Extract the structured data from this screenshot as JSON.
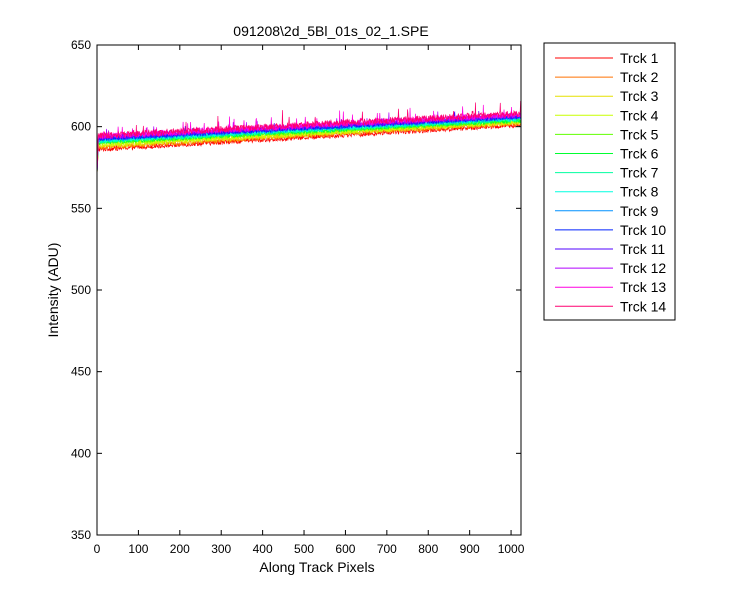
{
  "chart_data": {
    "type": "line",
    "title": "091208\\2d_5Bl_01s_02_1.SPE",
    "xlabel": "Along Track Pixels",
    "ylabel": "Intensity (ADU)",
    "xlim": [
      0,
      1024
    ],
    "ylim": [
      350,
      650
    ],
    "xticks": [
      0,
      100,
      200,
      300,
      400,
      500,
      600,
      700,
      800,
      900,
      1000
    ],
    "yticks": [
      350,
      400,
      450,
      500,
      550,
      600,
      650
    ],
    "grid": false,
    "legend_position": "outside-right",
    "series": [
      {
        "name": "Trck 1",
        "color": "#ff0000",
        "start": 586,
        "end": 601,
        "noise": 1.4,
        "spike": 3
      },
      {
        "name": "Trck 2",
        "color": "#ff7000",
        "start": 587,
        "end": 602,
        "noise": 1.4,
        "spike": 3
      },
      {
        "name": "Trck 3",
        "color": "#e6e000",
        "start": 588,
        "end": 602.5,
        "noise": 1.4,
        "spike": 3
      },
      {
        "name": "Trck 4",
        "color": "#c8ff00",
        "start": 589,
        "end": 603,
        "noise": 1.4,
        "spike": 3
      },
      {
        "name": "Trck 5",
        "color": "#60ff00",
        "start": 590,
        "end": 603.5,
        "noise": 1.4,
        "spike": 3
      },
      {
        "name": "Trck 6",
        "color": "#00ff30",
        "start": 590.5,
        "end": 604,
        "noise": 1.4,
        "spike": 3
      },
      {
        "name": "Trck 7",
        "color": "#00ffa0",
        "start": 591,
        "end": 604.5,
        "noise": 1.4,
        "spike": 3
      },
      {
        "name": "Trck 8",
        "color": "#00ffe0",
        "start": 591.5,
        "end": 605,
        "noise": 1.4,
        "spike": 3
      },
      {
        "name": "Trck 9",
        "color": "#0090ff",
        "start": 592,
        "end": 605.5,
        "noise": 1.4,
        "spike": 3
      },
      {
        "name": "Trck 10",
        "color": "#0020ff",
        "start": 592.5,
        "end": 606,
        "noise": 1.4,
        "spike": 3
      },
      {
        "name": "Trck 11",
        "color": "#5000ff",
        "start": 593,
        "end": 606.5,
        "noise": 1.6,
        "spike": 4
      },
      {
        "name": "Trck 12",
        "color": "#b000ff",
        "start": 593.5,
        "end": 607,
        "noise": 1.6,
        "spike": 5
      },
      {
        "name": "Trck 13",
        "color": "#ff00e0",
        "start": 594,
        "end": 607.5,
        "noise": 1.8,
        "spike": 7
      },
      {
        "name": "Trck 14",
        "color": "#ff0070",
        "start": 594.5,
        "end": 608,
        "noise": 2.0,
        "spike": 10
      }
    ],
    "initial_dip": 570,
    "n_points": 1024
  }
}
